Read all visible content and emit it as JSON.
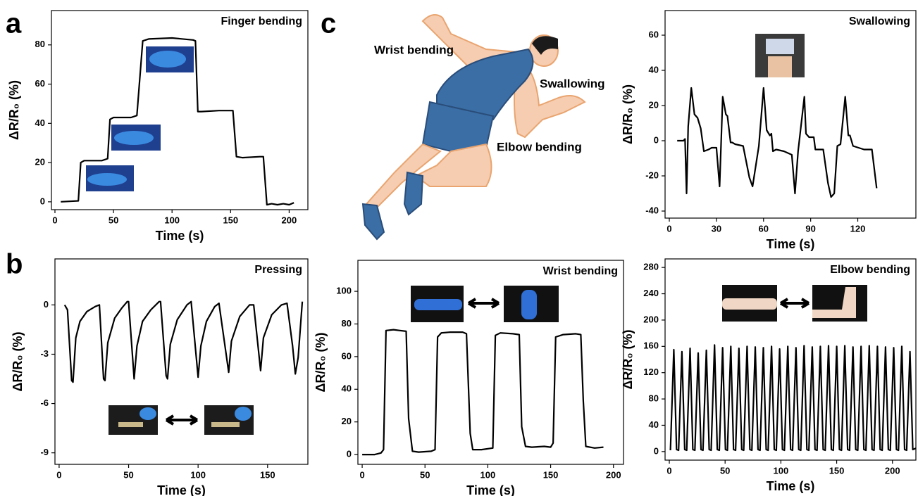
{
  "panels": [
    "a",
    "b",
    "c"
  ],
  "illustration": {
    "labels": [
      "Wrist bending",
      "Swallowing",
      "Elbow bending"
    ]
  },
  "chart_data": [
    {
      "type": "line",
      "annotation": "Finger bending",
      "x_label": "Time (s)",
      "y_label": "ΔR/R₀ (%)",
      "color": "#000000",
      "x": [
        5,
        20,
        22,
        25,
        40,
        45,
        47,
        50,
        65,
        70,
        75,
        80,
        100,
        118,
        120,
        122,
        125,
        140,
        152,
        155,
        160,
        175,
        178,
        181,
        185,
        190,
        195,
        200,
        204
      ],
      "values": [
        0,
        0.5,
        20,
        21,
        21,
        22,
        42,
        43,
        43,
        44,
        82,
        83,
        83.5,
        82.5,
        82,
        46,
        46,
        46.5,
        46.5,
        23,
        22.5,
        23,
        23,
        -1.5,
        -1,
        -1.5,
        -1,
        -1.5,
        -0.5
      ],
      "xlim": [
        -3,
        216
      ],
      "ylim": [
        -4,
        97.5
      ],
      "xticks": [
        0,
        50,
        100,
        150,
        200
      ],
      "yticks": [
        0,
        20,
        40,
        60,
        80
      ]
    },
    {
      "type": "line",
      "annotation": "Pressing",
      "x_label": "Time (s)",
      "y_label": "ΔR/R₀ (%)",
      "color": "#000000",
      "x": [
        4,
        6,
        9,
        10,
        12,
        15,
        20,
        26,
        29,
        32,
        33,
        35,
        40,
        45,
        49,
        50,
        54,
        56,
        60,
        66,
        72,
        73,
        77,
        78,
        80,
        85,
        92,
        95,
        100,
        102,
        106,
        112,
        115,
        122,
        124,
        130,
        137,
        140,
        145,
        147,
        153,
        160,
        164,
        168,
        170,
        172,
        175
      ],
      "values": [
        0,
        -0.3,
        -4.6,
        -4.7,
        -2,
        -1,
        -0.4,
        -0.1,
        0,
        -4.5,
        -4.6,
        -2.3,
        -0.8,
        -0.2,
        0.2,
        0.2,
        -4.5,
        -2.5,
        -1,
        -0.3,
        0.2,
        0.2,
        -4.3,
        -4.5,
        -2.4,
        -0.9,
        0,
        0.2,
        -4.4,
        -2.5,
        -1,
        -0.1,
        0.1,
        -4.1,
        -2.2,
        -0.7,
        0,
        0,
        -4,
        -2,
        -0.6,
        0,
        0.1,
        -2.5,
        -4.2,
        -3.2,
        0.2
      ],
      "xlim": [
        -3,
        179
      ],
      "ylim": [
        -9.7,
        2.8
      ],
      "xticks": [
        0,
        50,
        100,
        150
      ],
      "yticks": [
        0,
        -3,
        -6,
        -9
      ]
    },
    {
      "type": "line",
      "annotation": "Swallowing",
      "x_label": "Time (s)",
      "y_label": "ΔR/R₀ (%)",
      "color": "#000000",
      "x": [
        5,
        9,
        10,
        11,
        12,
        14,
        16,
        18,
        20,
        22,
        25,
        27,
        30,
        32,
        34,
        36,
        37,
        39,
        40,
        42,
        47,
        51,
        53,
        57,
        60,
        62,
        64,
        65,
        66,
        68,
        73,
        78,
        80,
        82,
        86,
        87,
        89,
        92,
        93,
        98,
        101,
        103,
        105,
        107,
        109,
        112,
        114,
        115,
        117,
        124,
        129,
        132
      ],
      "values": [
        0,
        0,
        1,
        -30,
        8,
        30,
        15,
        13,
        7,
        -6,
        -5,
        -4,
        -4,
        -26,
        25,
        15,
        14,
        -1,
        -1,
        -2,
        -3,
        -21,
        -26,
        -3,
        30,
        6,
        3,
        4,
        -6,
        -5,
        -6,
        -8,
        -30,
        -6,
        25,
        4,
        2,
        2,
        -5,
        -5,
        -24,
        -32,
        -30,
        -3,
        -2,
        25,
        3,
        3,
        -3,
        -5,
        -5,
        -27
      ],
      "xlim": [
        -2.7,
        157
      ],
      "ylim": [
        -44,
        74
      ],
      "xticks": [
        0,
        30,
        60,
        90,
        120
      ],
      "yticks": [
        -40,
        -20,
        0,
        20,
        40,
        60
      ]
    },
    {
      "type": "line",
      "annotation": "Wrist bending",
      "x_label": "Time (s)",
      "y_label": "ΔR/R₀ (%)",
      "color": "#000000",
      "x": [
        0,
        10,
        15,
        17,
        19,
        25,
        30,
        35,
        37,
        40,
        45,
        55,
        58,
        60,
        63,
        70,
        80,
        83,
        86,
        88,
        95,
        104,
        106,
        110,
        120,
        125,
        127,
        130,
        135,
        145,
        150,
        152,
        154,
        160,
        170,
        174,
        176,
        178,
        185,
        192
      ],
      "values": [
        0,
        0,
        1,
        3,
        76,
        76.5,
        76,
        75.5,
        22,
        2,
        1.5,
        2,
        3,
        72,
        74.5,
        75,
        75,
        74,
        13,
        3,
        3,
        4,
        73,
        74.5,
        74,
        73.5,
        17,
        5,
        4.5,
        5,
        4.5,
        7,
        72,
        73.5,
        74,
        73.5,
        33,
        5,
        4,
        4.5
      ],
      "xlim": [
        -3.4,
        208
      ],
      "ylim": [
        -6,
        119
      ],
      "xticks": [
        0,
        50,
        100,
        150,
        200
      ],
      "yticks": [
        0,
        20,
        40,
        60,
        80,
        100
      ]
    },
    {
      "type": "line",
      "annotation": "Elbow bending",
      "x_label": "Time (s)",
      "y_label": "ΔR/R₀ (%)",
      "color": "#000000",
      "x": [
        1,
        4,
        6.5,
        8.3,
        11.3,
        13.8,
        15.6,
        18.6,
        21.1,
        22.9,
        25.9,
        28.4,
        30.2,
        33.2,
        35.7,
        37.5,
        40.5,
        43,
        44.8,
        47.8,
        50.3,
        52.1,
        55.1,
        57.6,
        59.4,
        62.4,
        64.9,
        66.7,
        69.7,
        72.2,
        74,
        77,
        79.5,
        81.3,
        84.3,
        86.8,
        88.6,
        91.6,
        94.1,
        95.9,
        98.9,
        101.4,
        103.2,
        106.2,
        108.7,
        110.5,
        113.5,
        116,
        117.8,
        120.8,
        123.3,
        125.1,
        128.1,
        130.6,
        132.4,
        135.4,
        137.9,
        139.7,
        142.7,
        145.2,
        147,
        150,
        152.5,
        154.3,
        157.3,
        159.8,
        161.6,
        164.6,
        167.1,
        168.9,
        171.9,
        174.4,
        176.2,
        179.2,
        181.7,
        183.5,
        186.5,
        189,
        190.8,
        193.8,
        196.3,
        198.1,
        201.1,
        203.6,
        205.4,
        208.4,
        210.9,
        212.7,
        215.7,
        218.2,
        221
      ],
      "values": [
        2,
        155,
        3,
        2,
        152,
        3,
        2,
        157,
        3,
        2,
        150,
        3,
        2,
        154,
        3,
        2,
        162,
        3,
        2,
        158,
        3,
        2,
        160,
        3,
        2,
        157,
        3,
        2,
        160,
        3,
        2,
        159,
        3,
        2,
        158,
        3,
        2,
        160,
        3,
        2,
        156,
        3,
        2,
        160,
        3,
        2,
        158,
        3,
        2,
        161,
        3,
        2,
        159,
        3,
        2,
        160,
        3,
        2,
        161,
        3,
        2,
        160,
        3,
        2,
        161,
        3,
        2,
        159,
        3,
        2,
        160,
        3,
        2,
        161,
        3,
        2,
        160,
        3,
        2,
        159,
        3,
        2,
        158,
        3,
        2,
        160,
        3,
        2,
        152,
        3,
        5
      ],
      "xlim": [
        -3.8,
        221
      ],
      "ylim": [
        -13,
        293
      ],
      "xticks": [
        0,
        50,
        100,
        150,
        200
      ],
      "yticks": [
        0,
        40,
        80,
        120,
        160,
        200,
        240,
        280
      ]
    }
  ]
}
